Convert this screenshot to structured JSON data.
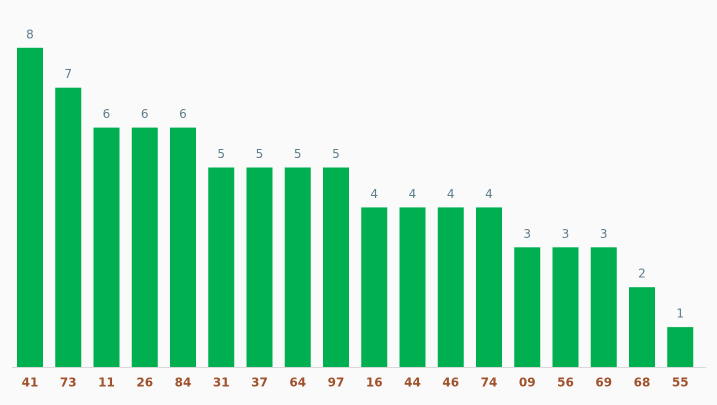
{
  "chart_data": {
    "type": "bar",
    "categories": [
      "41",
      "73",
      "11",
      "26",
      "84",
      "31",
      "37",
      "64",
      "97",
      "16",
      "44",
      "46",
      "74",
      "09",
      "56",
      "69",
      "68",
      "55"
    ],
    "values": [
      8,
      7,
      6,
      6,
      6,
      5,
      5,
      5,
      5,
      4,
      4,
      4,
      4,
      3,
      3,
      3,
      2,
      1
    ],
    "color": "#00b050"
  }
}
